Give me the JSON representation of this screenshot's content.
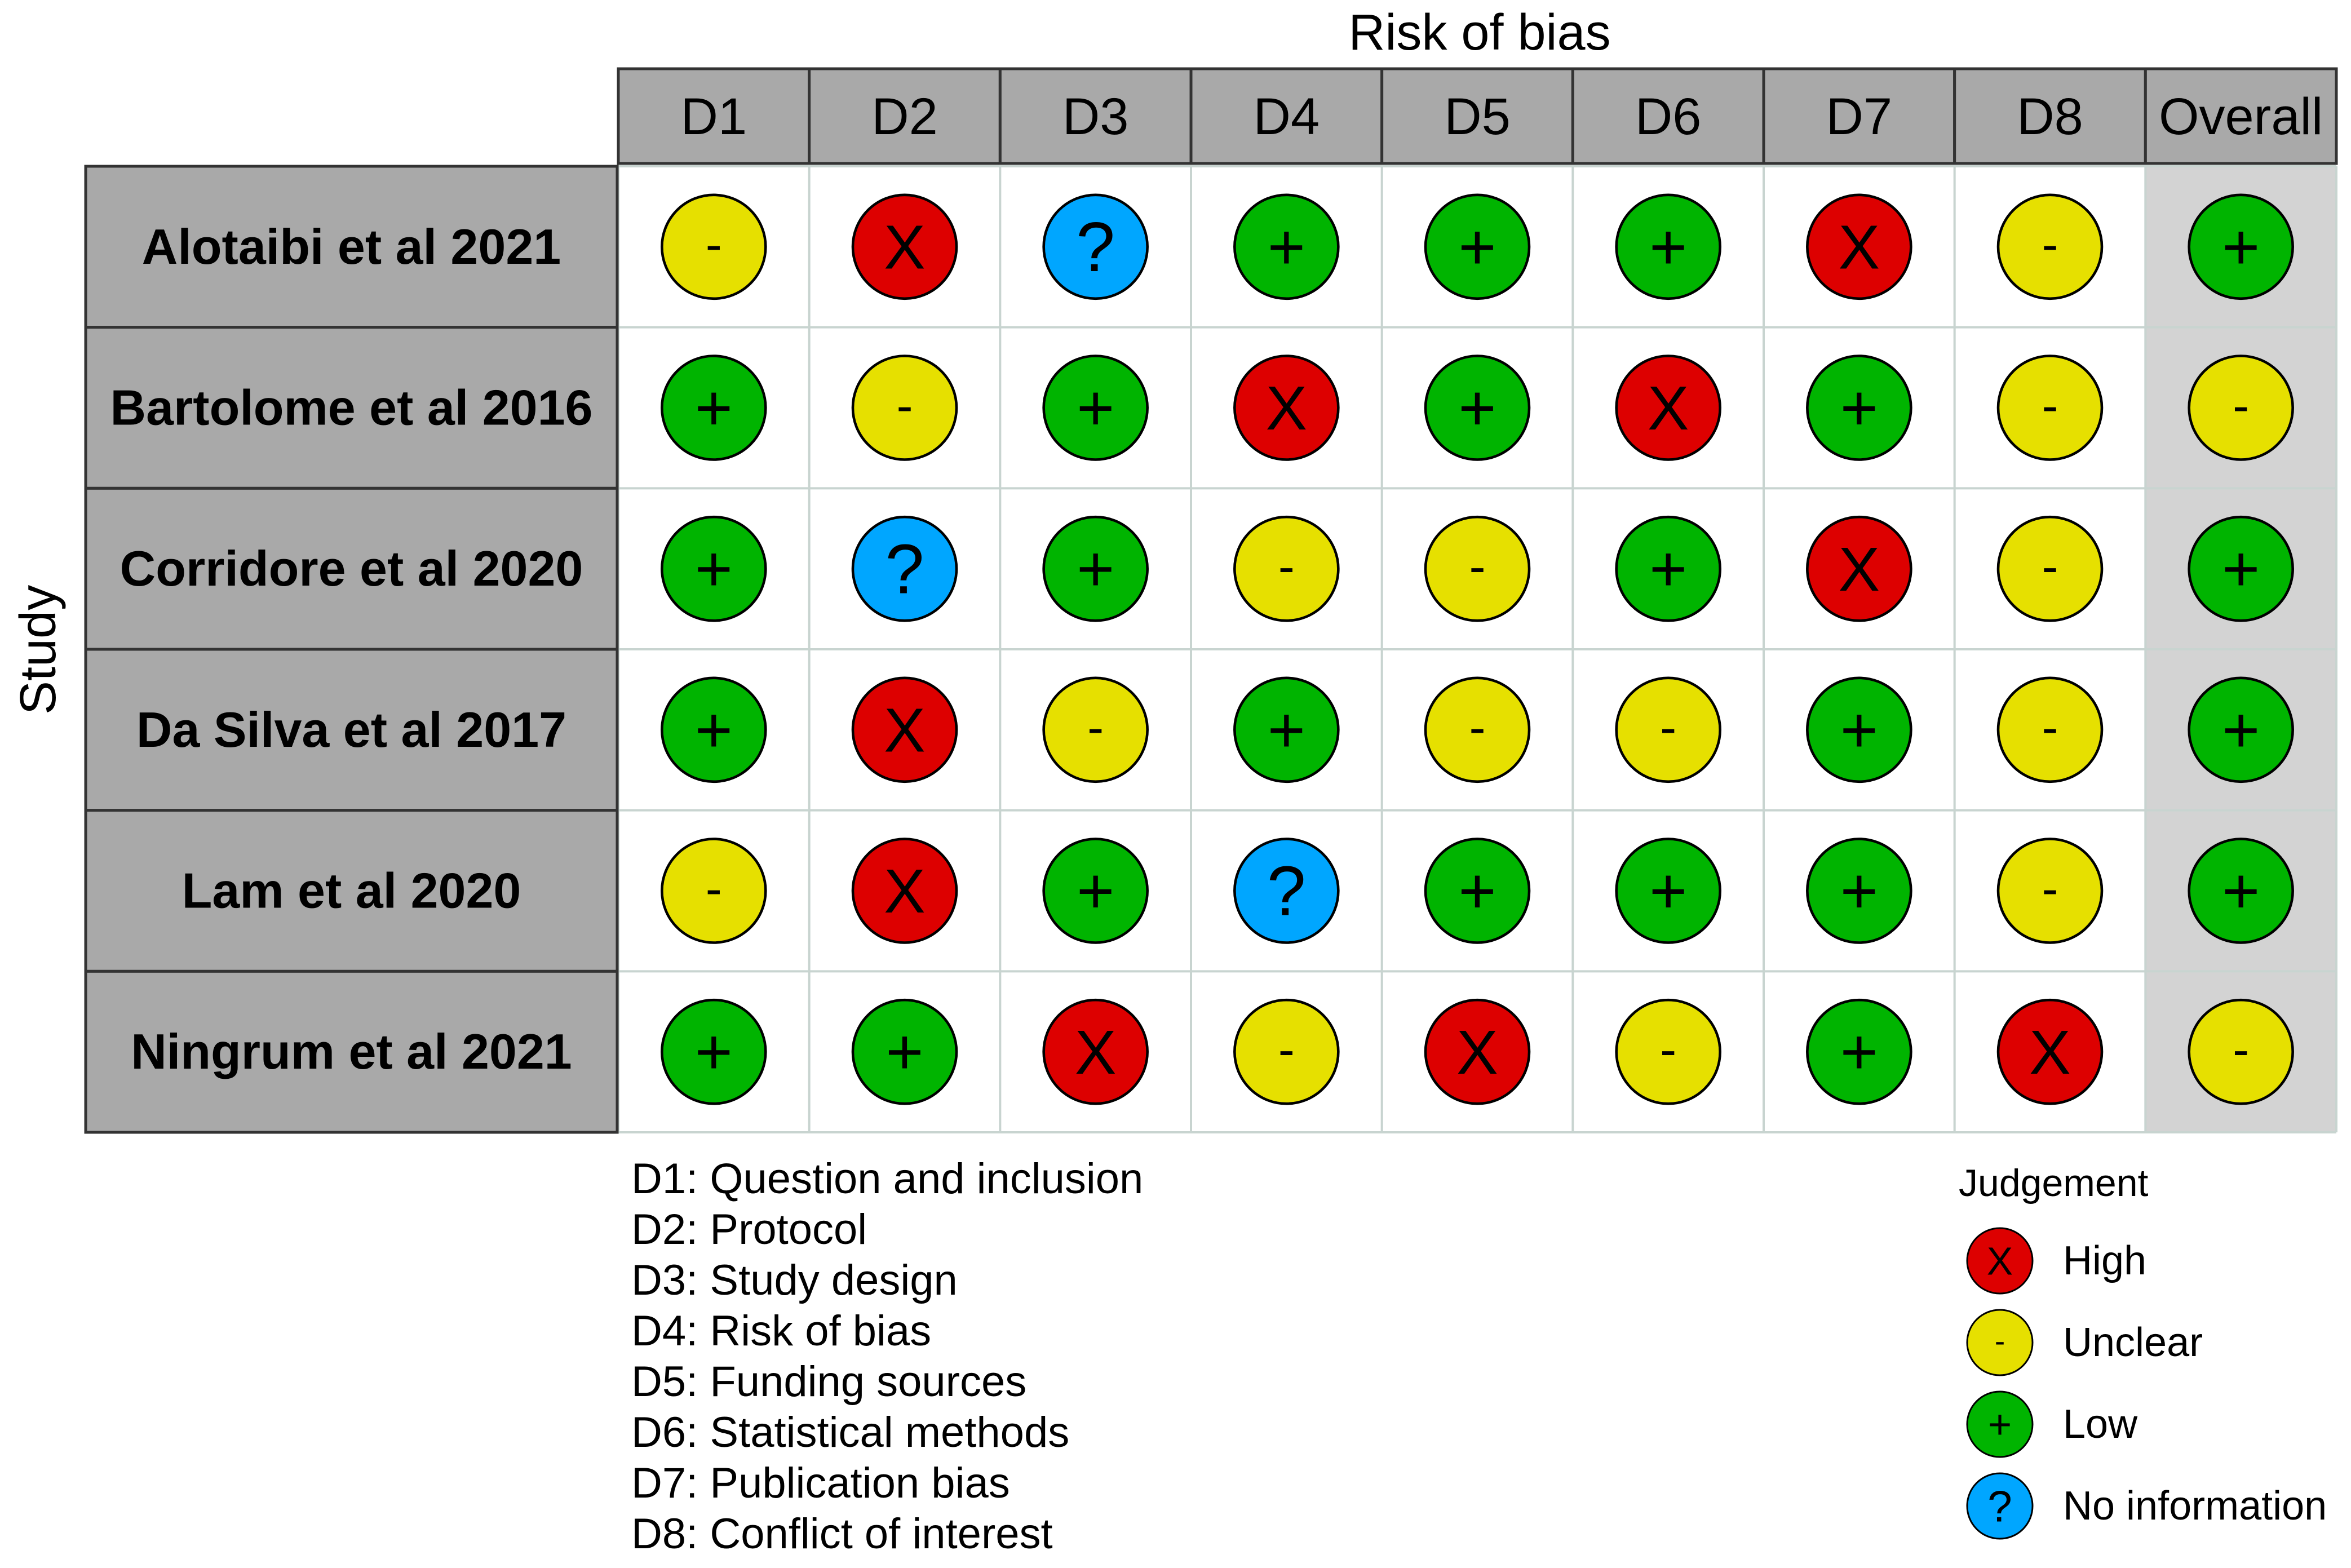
{
  "chart_data": {
    "type": "table",
    "title": "Risk of bias",
    "ylabel": "Study",
    "columns": [
      "D1",
      "D2",
      "D3",
      "D4",
      "D5",
      "D6",
      "D7",
      "D8",
      "Overall"
    ],
    "rows": [
      {
        "study": "Alotaibi et al 2021",
        "judgements": [
          "Unclear",
          "High",
          "No information",
          "Low",
          "Low",
          "Low",
          "High",
          "Unclear",
          "Low"
        ]
      },
      {
        "study": "Bartolome et al 2016",
        "judgements": [
          "Low",
          "Unclear",
          "Low",
          "High",
          "Low",
          "High",
          "Low",
          "Unclear",
          "Unclear"
        ]
      },
      {
        "study": "Corridore et al 2020",
        "judgements": [
          "Low",
          "No information",
          "Low",
          "Unclear",
          "Unclear",
          "Low",
          "High",
          "Unclear",
          "Low"
        ]
      },
      {
        "study": "Da Silva et al 2017",
        "judgements": [
          "Low",
          "High",
          "Unclear",
          "Low",
          "Unclear",
          "Unclear",
          "Low",
          "Unclear",
          "Low"
        ]
      },
      {
        "study": "Lam et al 2020",
        "judgements": [
          "Unclear",
          "High",
          "Low",
          "No information",
          "Low",
          "Low",
          "Low",
          "Unclear",
          "Low"
        ]
      },
      {
        "study": "Ningrum et al 2021",
        "judgements": [
          "Low",
          "Low",
          "High",
          "Unclear",
          "High",
          "Unclear",
          "Low",
          "High",
          "Unclear"
        ]
      }
    ],
    "domain_key": [
      "D1: Question and inclusion",
      "D2: Protocol",
      "D3: Study design",
      "D4: Risk of bias",
      "D5: Funding sources",
      "D6: Statistical methods",
      "D7: Publication bias",
      "D8: Conflict of interest"
    ],
    "legend": {
      "title": "Judgement",
      "position": "bottom-right",
      "entries": [
        {
          "label": "High",
          "symbol": "X",
          "color": "#dd0000"
        },
        {
          "label": "Unclear",
          "symbol": "-",
          "color": "#e6e000"
        },
        {
          "label": "Low",
          "symbol": "+",
          "color": "#00b400"
        },
        {
          "label": "No information",
          "symbol": "?",
          "color": "#00a6ff"
        }
      ]
    }
  }
}
